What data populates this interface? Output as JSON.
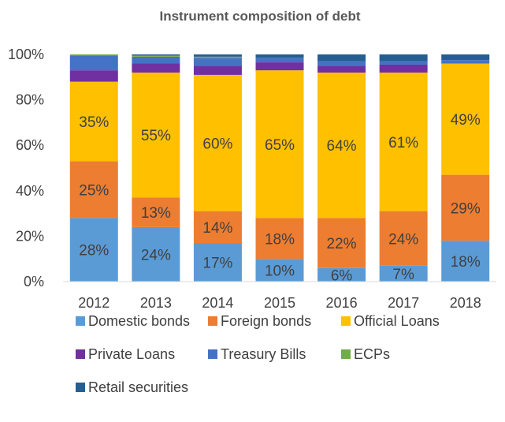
{
  "chart_data": {
    "type": "bar",
    "stacked": true,
    "title": "Instrument composition of debt",
    "xlabel": "",
    "ylabel": "",
    "categories": [
      "2012",
      "2013",
      "2014",
      "2015",
      "2016",
      "2017",
      "2018"
    ],
    "ylim": [
      0,
      100
    ],
    "yticks": [
      "0%",
      "20%",
      "40%",
      "60%",
      "80%",
      "100%"
    ],
    "grid": false,
    "legend_position": "bottom",
    "series": [
      {
        "name": "Domestic bonds",
        "color": "#5B9BD5",
        "values": [
          28,
          24,
          17,
          10,
          6,
          7,
          18
        ],
        "labels": [
          "28%",
          "24%",
          "17%",
          "10%",
          "6%",
          "7%",
          "18%"
        ]
      },
      {
        "name": "Foreign bonds",
        "color": "#ED7D31",
        "values": [
          25,
          13,
          14,
          18,
          22,
          24,
          29
        ],
        "labels": [
          "25%",
          "13%",
          "14%",
          "18%",
          "22%",
          "24%",
          "29%"
        ]
      },
      {
        "name": "Official Loans",
        "color": "#FFC000",
        "values": [
          35,
          55,
          60,
          65,
          64,
          61,
          49
        ],
        "labels": [
          "35%",
          "55%",
          "60%",
          "65%",
          "64%",
          "61%",
          "49%"
        ]
      },
      {
        "name": "Private Loans",
        "color": "#7030A0",
        "values": [
          5,
          4,
          4,
          3.5,
          3,
          3.5,
          0
        ]
      },
      {
        "name": "Treasury Bills",
        "color": "#4472C4",
        "values": [
          6.5,
          3,
          3.5,
          2,
          2,
          1.5,
          1.5
        ]
      },
      {
        "name": "ECPs",
        "color": "#70AD47",
        "values": [
          0.5,
          0.5,
          0.5,
          0,
          0,
          0,
          0
        ]
      },
      {
        "name": "Retail securities",
        "color": "#255E91",
        "values": [
          0,
          0.5,
          1,
          1.5,
          3,
          3,
          2.5
        ]
      }
    ]
  }
}
